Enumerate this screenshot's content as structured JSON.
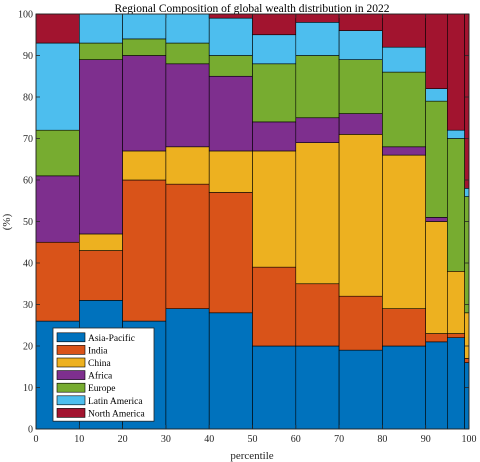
{
  "chart_data": {
    "type": "bar",
    "stacked": true,
    "variable_width": true,
    "title": "Regional Composition of global wealth distribution in 2022",
    "xlabel": "percentile",
    "ylabel": "(%)",
    "xlim": [
      0,
      100
    ],
    "ylim": [
      0,
      100
    ],
    "xticks": [
      0,
      10,
      20,
      30,
      40,
      50,
      60,
      70,
      80,
      90,
      100
    ],
    "yticks": [
      0,
      10,
      20,
      30,
      40,
      50,
      60,
      70,
      80,
      90,
      100
    ],
    "grid": false,
    "legend_position": "bottom-left",
    "bins": [
      {
        "x0": 0,
        "x1": 10
      },
      {
        "x0": 10,
        "x1": 20
      },
      {
        "x0": 20,
        "x1": 30
      },
      {
        "x0": 30,
        "x1": 40
      },
      {
        "x0": 40,
        "x1": 50
      },
      {
        "x0": 50,
        "x1": 60
      },
      {
        "x0": 60,
        "x1": 70
      },
      {
        "x0": 70,
        "x1": 80
      },
      {
        "x0": 80,
        "x1": 90
      },
      {
        "x0": 90,
        "x1": 95
      },
      {
        "x0": 95,
        "x1": 99
      },
      {
        "x0": 99,
        "x1": 100
      }
    ],
    "series": [
      {
        "name": "Asia-Pacific",
        "color": "#0072BD",
        "values": [
          26,
          31,
          26,
          29,
          28,
          20,
          20,
          19,
          20,
          21,
          22,
          16
        ]
      },
      {
        "name": "India",
        "color": "#D95319",
        "values": [
          19,
          12,
          34,
          30,
          29,
          19,
          15,
          13,
          9,
          2,
          1,
          1
        ]
      },
      {
        "name": "China",
        "color": "#EDB120",
        "values": [
          0,
          4,
          7,
          9,
          10,
          28,
          34,
          39,
          37,
          27,
          15,
          11
        ]
      },
      {
        "name": "Africa",
        "color": "#7E2F8E",
        "values": [
          16,
          42,
          23,
          20,
          18,
          7,
          6,
          5,
          2,
          1,
          0,
          0
        ]
      },
      {
        "name": "Europe",
        "color": "#77AC30",
        "values": [
          11,
          4,
          4,
          5,
          5,
          14,
          15,
          13,
          18,
          28,
          32,
          28
        ]
      },
      {
        "name": "Latin America",
        "color": "#4DBEEE",
        "values": [
          21,
          7,
          6,
          7,
          9,
          7,
          8,
          7,
          6,
          3,
          2,
          2
        ]
      },
      {
        "name": "North America",
        "color": "#A2142F",
        "values": [
          7,
          0,
          0,
          0,
          1,
          5,
          2,
          4,
          8,
          18,
          28,
          42
        ]
      }
    ]
  }
}
